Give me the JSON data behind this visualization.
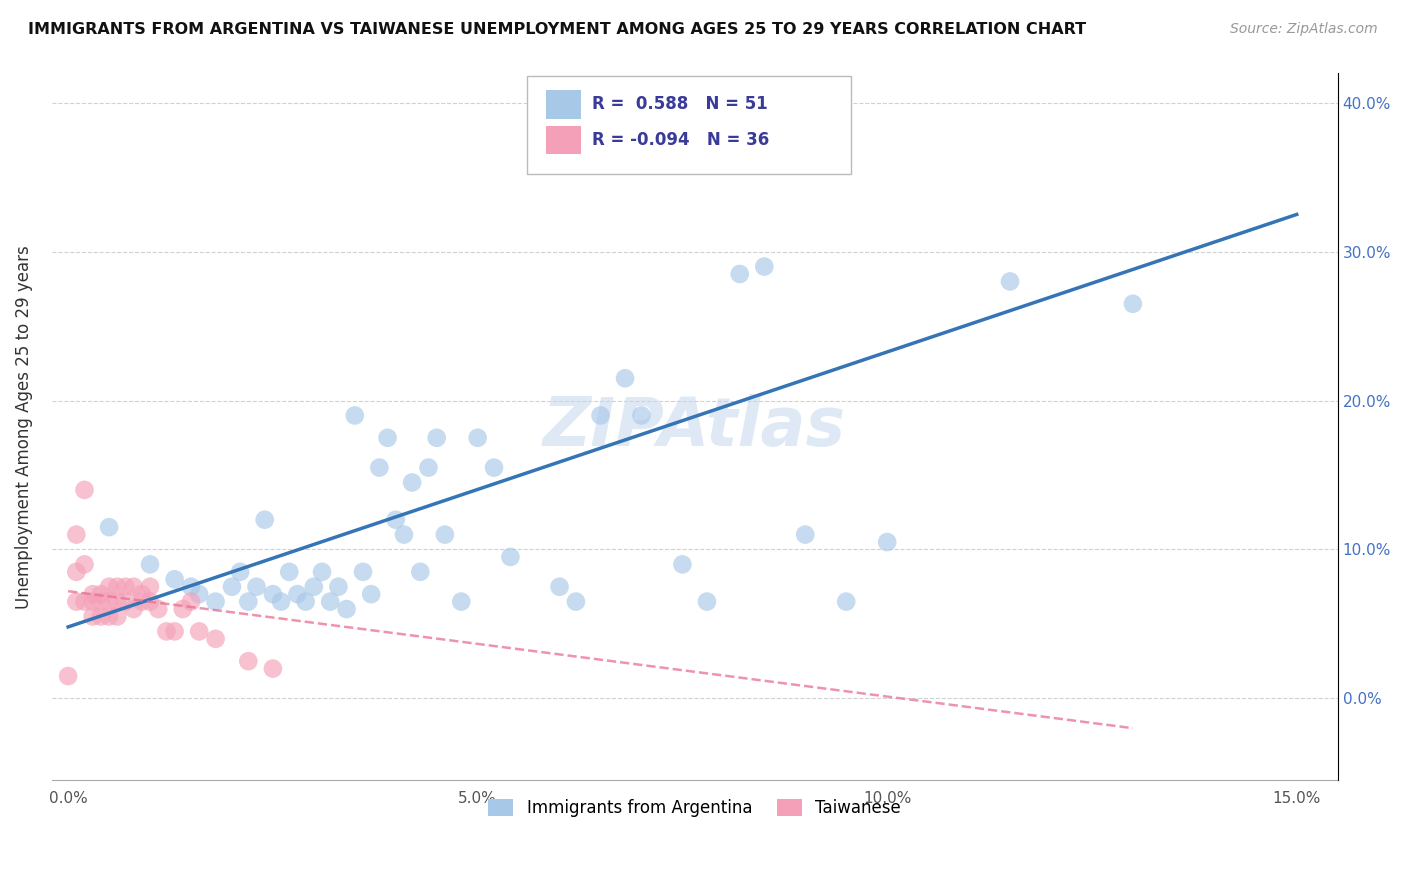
{
  "title": "IMMIGRANTS FROM ARGENTINA VS TAIWANESE UNEMPLOYMENT AMONG AGES 25 TO 29 YEARS CORRELATION CHART",
  "source": "Source: ZipAtlas.com",
  "ylabel": "Unemployment Among Ages 25 to 29 years",
  "legend_label1": "Immigrants from Argentina",
  "legend_label2": "Taiwanese",
  "r1": "0.588",
  "n1": "51",
  "r2": "-0.094",
  "n2": "36",
  "xlim": [
    -0.002,
    0.155
  ],
  "ylim": [
    -0.055,
    0.42
  ],
  "xticks": [
    0.0,
    0.05,
    0.1,
    0.15
  ],
  "xtick_labels": [
    "0.0%",
    "5.0%",
    "10.0%",
    "15.0%"
  ],
  "yticks": [
    0.0,
    0.1,
    0.2,
    0.3,
    0.4
  ],
  "ytick_labels": [
    "0.0%",
    "10.0%",
    "20.0%",
    "30.0%",
    "40.0%"
  ],
  "color_blue": "#a8c8e8",
  "color_pink": "#f4a0b8",
  "color_blue_line": "#3575b5",
  "color_pink_line": "#e87090",
  "watermark": "ZIPAtlas",
  "blue_scatter_x": [
    0.005,
    0.01,
    0.013,
    0.015,
    0.016,
    0.018,
    0.02,
    0.021,
    0.022,
    0.023,
    0.024,
    0.025,
    0.026,
    0.027,
    0.028,
    0.029,
    0.03,
    0.031,
    0.032,
    0.033,
    0.034,
    0.035,
    0.036,
    0.037,
    0.038,
    0.039,
    0.04,
    0.041,
    0.042,
    0.043,
    0.044,
    0.045,
    0.046,
    0.048,
    0.05,
    0.052,
    0.054,
    0.06,
    0.062,
    0.065,
    0.068,
    0.07,
    0.075,
    0.078,
    0.082,
    0.085,
    0.09,
    0.095,
    0.1,
    0.115,
    0.13
  ],
  "blue_scatter_y": [
    0.115,
    0.09,
    0.08,
    0.075,
    0.07,
    0.065,
    0.075,
    0.085,
    0.065,
    0.075,
    0.12,
    0.07,
    0.065,
    0.085,
    0.07,
    0.065,
    0.075,
    0.085,
    0.065,
    0.075,
    0.06,
    0.19,
    0.085,
    0.07,
    0.155,
    0.175,
    0.12,
    0.11,
    0.145,
    0.085,
    0.155,
    0.175,
    0.11,
    0.065,
    0.175,
    0.155,
    0.095,
    0.075,
    0.065,
    0.19,
    0.215,
    0.19,
    0.09,
    0.065,
    0.285,
    0.29,
    0.11,
    0.065,
    0.105,
    0.28,
    0.265
  ],
  "pink_scatter_x": [
    0.0,
    0.001,
    0.001,
    0.001,
    0.002,
    0.002,
    0.002,
    0.003,
    0.003,
    0.003,
    0.004,
    0.004,
    0.004,
    0.005,
    0.005,
    0.005,
    0.006,
    0.006,
    0.006,
    0.007,
    0.007,
    0.008,
    0.008,
    0.009,
    0.009,
    0.01,
    0.01,
    0.011,
    0.012,
    0.013,
    0.014,
    0.015,
    0.016,
    0.018,
    0.022,
    0.025
  ],
  "pink_scatter_y": [
    0.015,
    0.11,
    0.085,
    0.065,
    0.14,
    0.09,
    0.065,
    0.07,
    0.065,
    0.055,
    0.07,
    0.065,
    0.055,
    0.075,
    0.065,
    0.055,
    0.075,
    0.065,
    0.055,
    0.075,
    0.065,
    0.075,
    0.06,
    0.065,
    0.07,
    0.075,
    0.065,
    0.06,
    0.045,
    0.045,
    0.06,
    0.065,
    0.045,
    0.04,
    0.025,
    0.02
  ],
  "blue_line_x": [
    0.0,
    0.15
  ],
  "blue_line_y": [
    0.048,
    0.325
  ],
  "pink_line_x": [
    0.0,
    0.13
  ],
  "pink_line_y": [
    0.072,
    -0.02
  ]
}
